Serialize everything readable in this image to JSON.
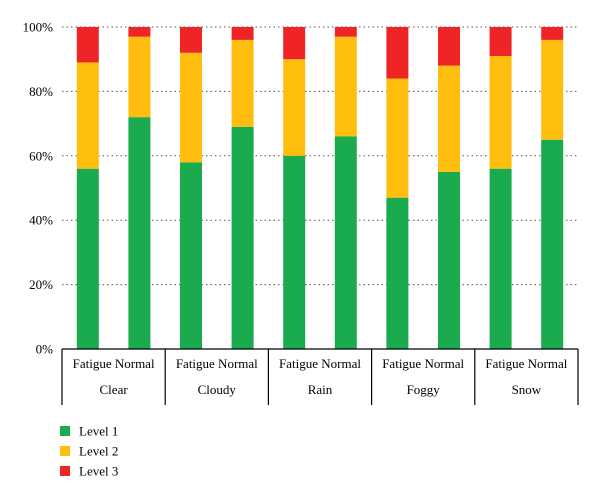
{
  "chart_data": {
    "type": "bar",
    "stacked": true,
    "percent_axis": true,
    "groups": [
      "Clear",
      "Cloudy",
      "Rain",
      "Foggy",
      "Snow"
    ],
    "subcategories": [
      "Fatigue",
      "Normal"
    ],
    "y_ticks": [
      "0%",
      "20%",
      "40%",
      "60%",
      "80%",
      "100%"
    ],
    "ylim": [
      0,
      100
    ],
    "grid": "horizontal-dotted",
    "legend_position": "bottom-left",
    "series": [
      {
        "name": "Level 1",
        "color": "#1aab4f",
        "values": [
          56,
          72,
          58,
          69,
          60,
          66,
          47,
          55,
          56,
          65
        ]
      },
      {
        "name": "Level 2",
        "color": "#ffbe0e",
        "values": [
          33,
          25,
          34,
          27,
          30,
          31,
          37,
          33,
          35,
          31
        ]
      },
      {
        "name": "Level 3",
        "color": "#ee2427",
        "values": [
          11,
          3,
          8,
          4,
          10,
          3,
          16,
          12,
          9,
          4
        ]
      }
    ]
  }
}
